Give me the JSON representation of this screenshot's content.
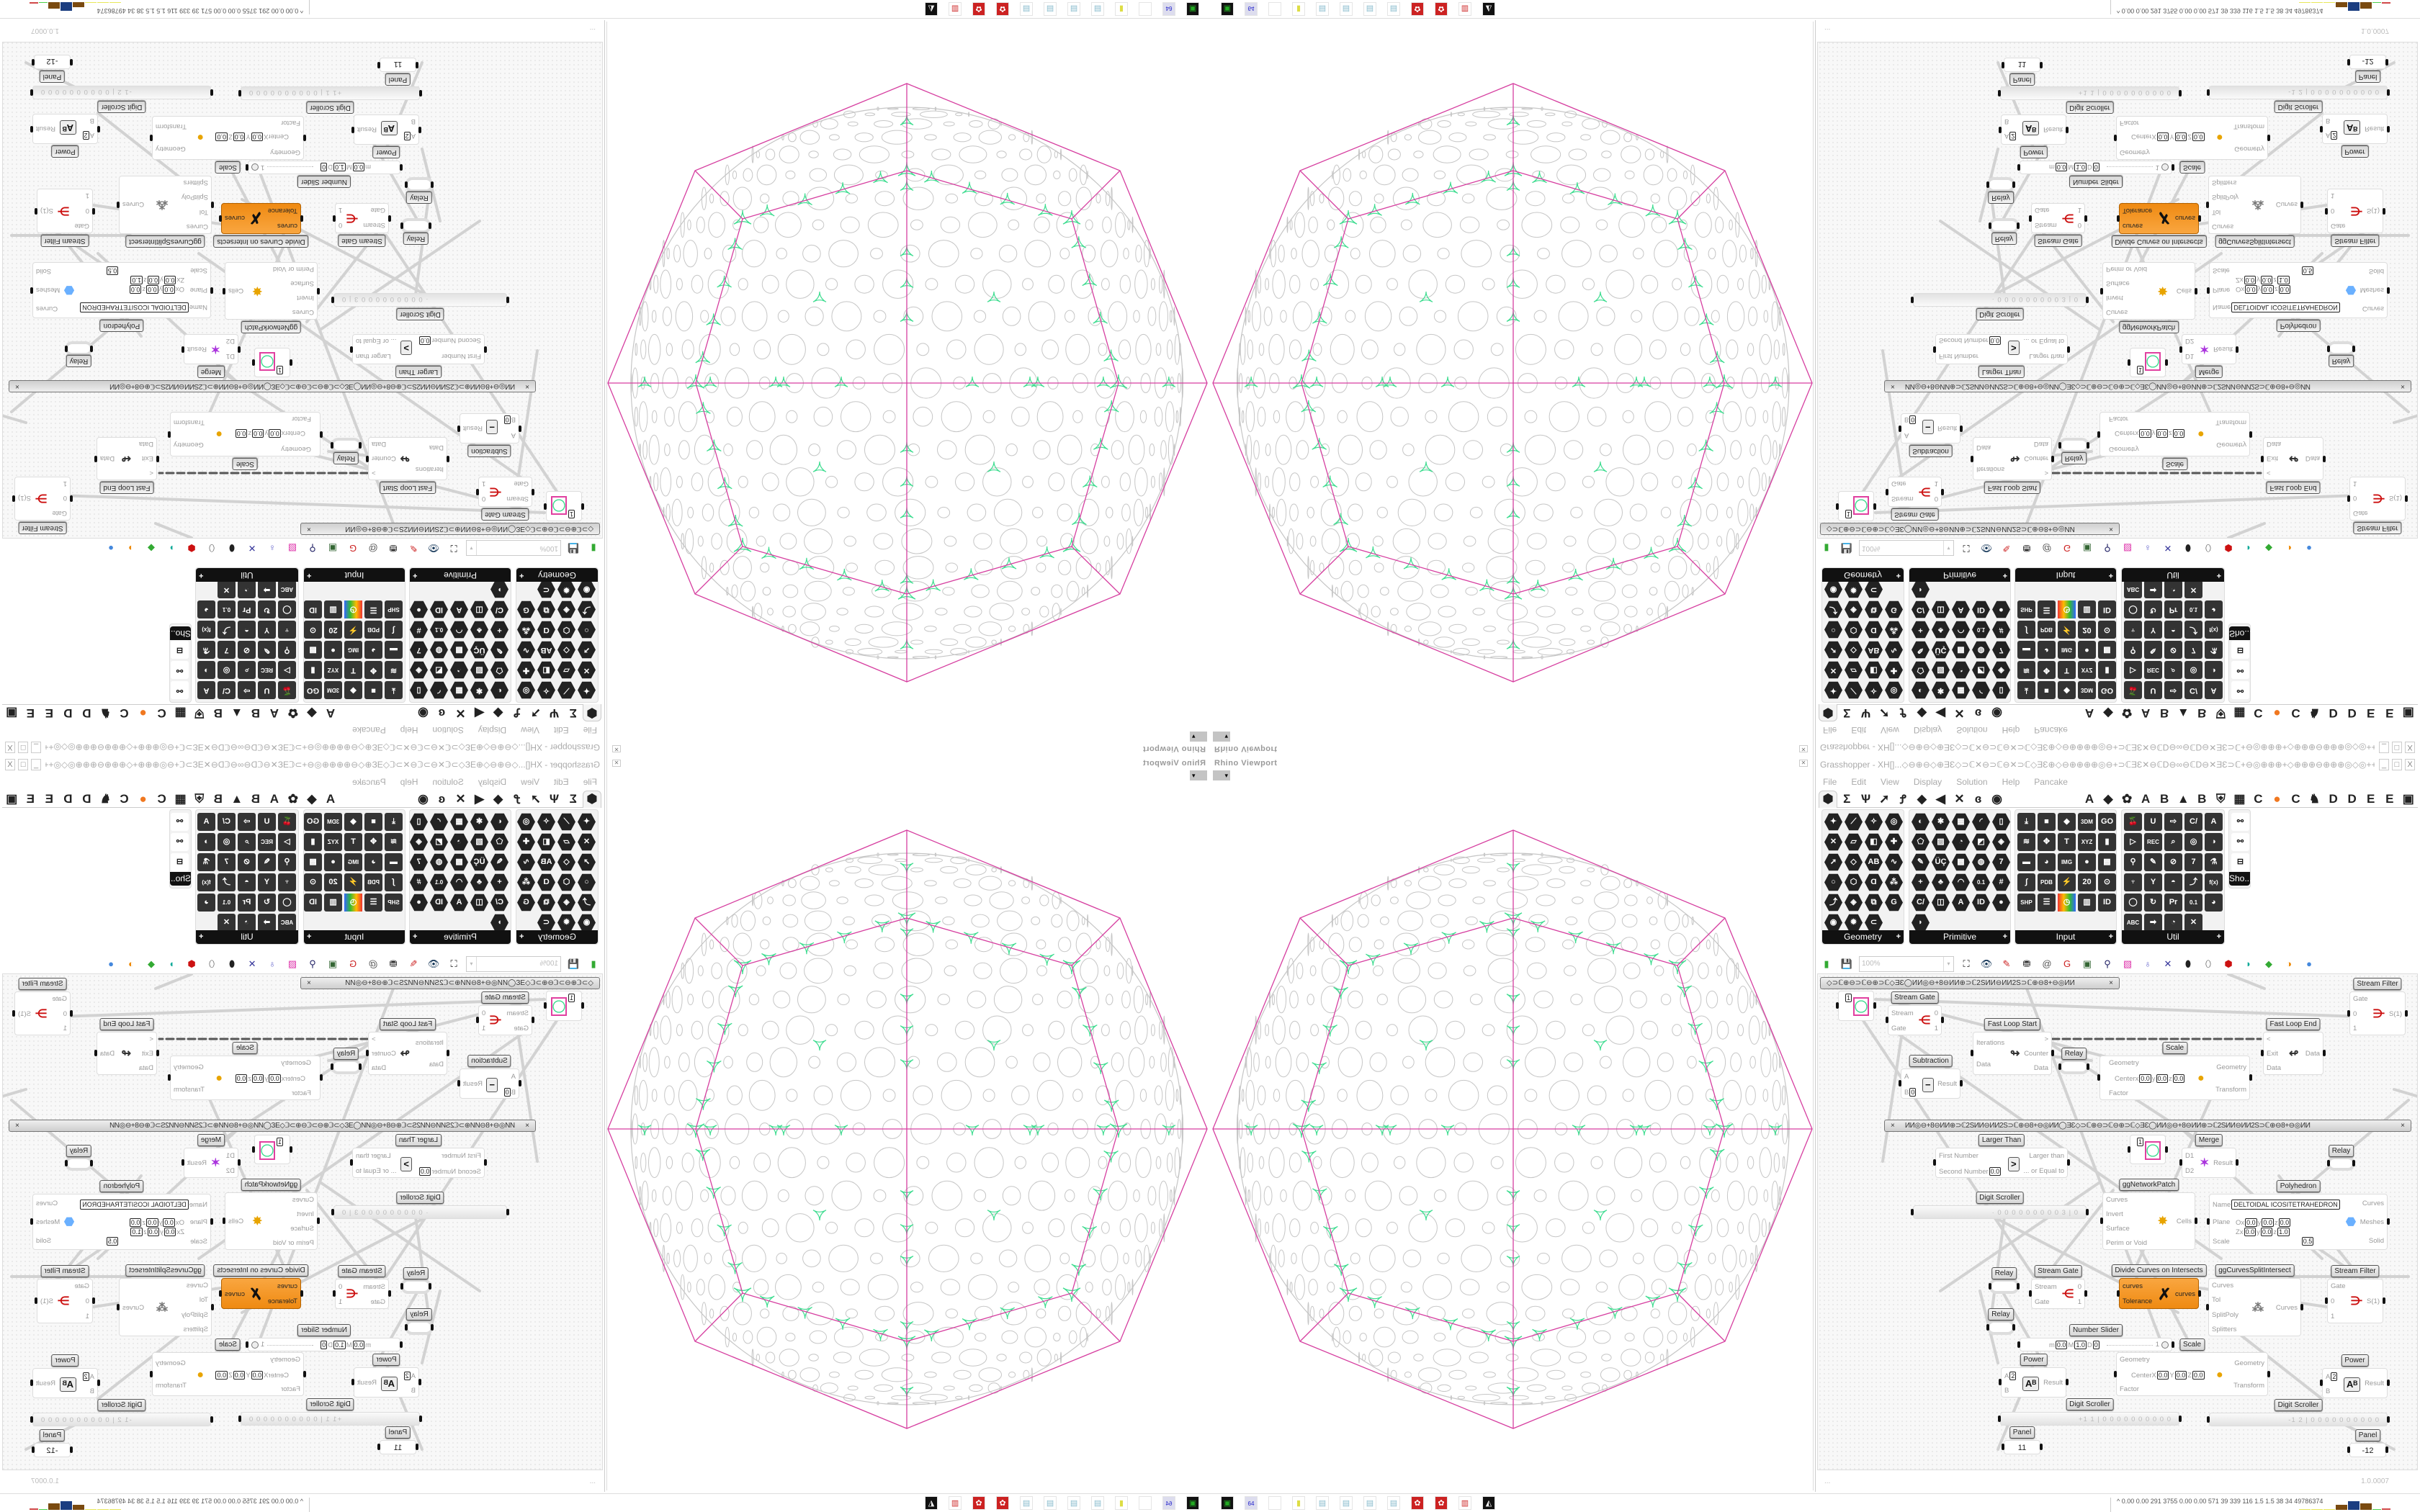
{
  "viewport": {
    "title": "Rhino Viewport",
    "close_icon": "close-icon",
    "colors": {
      "polyhedron_edges": "#d63fa0",
      "network": "#3ddc8f",
      "circles": "#c6c6c6"
    }
  },
  "gh": {
    "title": "Grasshopper - XH[]...◇⊖⊕⊖◇⊕ƎƐ◇⊃ℂ✕⊖⊃ℂ⊖✕⊃ℂ◇ƎƐ⊕◇⊖⊕⊕⊕⊕◎⊖+⊃ℂƎƐ✕⊖ℂD⊖∞⊖ℂD⊖✕ƎƐ⊃ℂ+⊖◎⊕⊕⊕+◇⊕⊕⊕⊖⊕⊕⊕◎◇◎+++◎◇◎⊕⊕⊖⊕⊕⊕⊕◇⊕⊕⊕◎⊖+⊃ℂƎƐ✕⊖ℂD⊖∞⊖ℂD...",
    "window_buttons": [
      "_",
      "□",
      "X"
    ],
    "menu": [
      "File",
      "Edit",
      "View",
      "Display",
      "Solution",
      "Help",
      "Pancake"
    ],
    "tabs": [
      "⬢",
      "Σ",
      "Ѱ",
      "➚",
      "Ꝭ",
      "◆",
      "◀",
      "✕",
      "ɞ",
      "◉",
      "",
      "A",
      "◆",
      "✿",
      "A",
      "B",
      "▲",
      "B",
      "⛨",
      "▦",
      "C",
      "●",
      "C",
      "♞",
      "D",
      "D",
      "E",
      "E",
      "▣"
    ],
    "active_tab": 0,
    "accent_color": "#ef8a12",
    "panels": [
      {
        "label": "Geometry",
        "icons": [
          "✦",
          "⟋",
          "✧",
          "◎",
          "✕",
          "▱",
          "◧",
          "✚",
          "➚",
          "◇",
          "AB",
          "∿",
          "○",
          "⬡",
          "Ɑ",
          "⁂",
          "⤴",
          "◈",
          "⧉",
          "G",
          "◉",
          "✹",
          "⊂"
        ]
      },
      {
        "label": "Primitive",
        "icons": [
          "◐",
          "✱",
          "▦",
          "◜",
          "▯",
          "⬠",
          "▨",
          "◔",
          "◩",
          "◈",
          "✎",
          "ÜÇ",
          "▩",
          "◍",
          "7",
          "+",
          "♣",
          "◠",
          "0.1",
          "#",
          "C/",
          "◫",
          "A",
          "ID",
          "●",
          "◗"
        ]
      },
      {
        "label": "Input",
        "icons": [
          "⤓",
          "■",
          "◆",
          "3DM",
          "GO",
          "≋",
          "✥",
          "T",
          "XYZ",
          "▮",
          "▬",
          "◕",
          "IMG",
          "●",
          "▩",
          "∫",
          "PDB",
          "⚡",
          "20",
          "⊙",
          "SHP",
          "☰",
          "◷",
          "▥",
          "ID"
        ]
      },
      {
        "label": "Util",
        "icons": [
          "🍒",
          "U",
          "⇨",
          "C/",
          "A",
          "▷",
          "REC",
          "⌕",
          "◎",
          "◑",
          "⚲",
          "✎",
          "⊘",
          "7",
          "⚗",
          "♆",
          "Y",
          "◓",
          "⤴",
          "f(x)",
          "◯",
          "↻",
          "Pr",
          "0.1",
          "◕",
          "ABC",
          "➡",
          "◔",
          "✕"
        ]
      },
      {
        "label": "Sho...",
        "icons": [
          "⚯",
          "⚯",
          "⊟"
        ]
      }
    ],
    "toolbar": {
      "zoom": "100%",
      "icons": [
        "new-file-icon",
        "save-icon",
        "zoom-extents-icon",
        "preview-eye-icon",
        "sketch-pen-icon",
        "bake-icon",
        "email-icon",
        "gha-icon",
        "canvas-icon",
        "search-icon",
        "package-icon",
        "bulb-icon",
        "wire-display-icon",
        "shaded-preview-icon",
        "wireframe-preview-icon",
        "preview-red-icon",
        "preview-teal-icon",
        "preview-green-icon",
        "preview-orange-icon",
        "preview-sphere-icon"
      ]
    },
    "group_bars": [
      "◇⊃ℂ⊕⊖⊃ℂ⊖⊕⊃ℂ◇ƎƐ◯ИИ◎⊖+8⊖ИИ⊕⊃ℂ2SИИ⊖ИИ2S⊃ℂ⊕⊖8+⊖◎ИИ",
      "ИИ◎⊖+8⊖ИИ⊕⊃ℂ2SИИ⊖ИИ2S⊃ℂ⊕⊖8+⊖◎ИИ◯ƎƐ◇⊃ℂ⊕⊖⊃ℂ⊖⊕⊃ℂ◇ƎƐ◯ИИ◎⊖+8⊖ИИ⊕⊃ℂ2SИИ⊖ИИ2S⊃ℂ⊕⊖8+⊖◎ИИ"
    ],
    "group_close": "×",
    "components": [
      {
        "id": "preview-1",
        "type": "preview",
        "value": "1"
      },
      {
        "id": "stream-gate-1",
        "label": "Stream Gate",
        "inputs": [
          "Stream",
          "Gate"
        ],
        "outputs": [
          "0",
          "1"
        ],
        "icon": "stream-gate-icon",
        "glyph": "⋲"
      },
      {
        "id": "fast-loop-start",
        "label": "Fast Loop Start",
        "inputs": [
          "Iterations",
          "Data"
        ],
        "outputs": [
          ">",
          "Counter",
          "Data"
        ],
        "icon": "loop-start-icon",
        "glyph": "↬"
      },
      {
        "id": "relay-1",
        "type": "relay",
        "label": "Relay"
      },
      {
        "id": "subtraction",
        "label": "Subtraction",
        "inputs": [
          "A",
          "B"
        ],
        "input_values": [
          null,
          "0"
        ],
        "outputs": [
          "Result"
        ],
        "icon": "minus-icon",
        "glyph": "−"
      },
      {
        "id": "scale-1",
        "label": "Scale",
        "inputs": [
          "Geometry",
          "Center",
          "Factor"
        ],
        "center": [
          "x",
          "0.0",
          "y",
          "0.0",
          "z",
          "0.0"
        ],
        "outputs": [
          "Geometry",
          "Transform"
        ],
        "icon": "scale-icon",
        "glyph": "●"
      },
      {
        "id": "fast-loop-end",
        "label": "Fast Loop End",
        "inputs": [
          "<",
          "Exit",
          "Data"
        ],
        "outputs": [
          "Data"
        ],
        "icon": "loop-end-icon",
        "glyph": "↫"
      },
      {
        "id": "stream-filter-1",
        "label": "Stream Filter",
        "inputs": [
          "Gate",
          "0",
          "1"
        ],
        "outputs": [
          "S(1)"
        ],
        "icon": "stream-filter-icon",
        "glyph": "⋺"
      },
      {
        "id": "larger-than",
        "label": "Larger Than",
        "inputs": [
          "First Number",
          "Second Number"
        ],
        "input_values": [
          null,
          "0.0"
        ],
        "outputs": [
          "Larger than",
          "... or Equal to"
        ],
        "icon": "greater-than-icon",
        "glyph": ">"
      },
      {
        "id": "preview-2",
        "type": "preview",
        "value": "1"
      },
      {
        "id": "merge",
        "label": "Merge",
        "inputs": [
          "D1",
          "D2"
        ],
        "outputs": [
          "Result"
        ],
        "icon": "merge-icon",
        "glyph": "✶"
      },
      {
        "id": "relay-2",
        "type": "relay",
        "label": "Relay"
      },
      {
        "id": "network-patch",
        "label": "ggNetworkPatch",
        "inputs": [
          "Curves",
          "Invert",
          "Surface",
          "Perim or Void"
        ],
        "outputs": [
          "Cells"
        ],
        "icon": "network-patch-icon",
        "glyph": "✸"
      },
      {
        "id": "polyhedron",
        "label": "Polyhedron",
        "inputs": [
          "Name",
          "Plane",
          "Scale"
        ],
        "name_value": "DELTOIDAL ICOSITETRAHEDRON",
        "plane_o": [
          "O",
          "x",
          "0.0",
          "y",
          "0.0",
          "z",
          "0.0"
        ],
        "plane_z": [
          "Z",
          "x",
          "0.0",
          "y",
          "0.0",
          "z",
          "1.0"
        ],
        "scale_value": "0.5",
        "outputs": [
          "Curves",
          "Meshes",
          "Solid"
        ],
        "icon": "polyhedron-icon",
        "glyph": "⬣"
      },
      {
        "id": "digit-scroller-1",
        "type": "scroller",
        "label": "Digit Scroller",
        "digits": "· 0 0 0 0 0 0 0 0 0 3 | 0"
      },
      {
        "id": "relay-3",
        "type": "relay",
        "label": "Relay"
      },
      {
        "id": "stream-gate-2",
        "label": "Stream Gate",
        "inputs": [
          "Stream",
          "Gate"
        ],
        "outputs": [
          "0",
          "1"
        ],
        "icon": "stream-gate-icon",
        "glyph": "⋲"
      },
      {
        "id": "divide-curves",
        "label": "Divide Curves on Intersects",
        "inputs": [
          "curves",
          "Tolerance"
        ],
        "outputs": [
          "curves"
        ],
        "icon": "divide-curves-icon",
        "glyph": "✗",
        "orange": true
      },
      {
        "id": "curves-split-intersect",
        "label": "ggCurvesSplitIntersect",
        "inputs": [
          "Curves",
          "Tol",
          "SplitPoly",
          "Splitters"
        ],
        "outputs": [
          "Curves"
        ],
        "icon": "split-icon",
        "glyph": "⁂"
      },
      {
        "id": "stream-filter-2",
        "label": "Stream Filter",
        "inputs": [
          "Gate",
          "0",
          "1"
        ],
        "outputs": [
          "S(1)"
        ],
        "icon": "stream-filter-icon",
        "glyph": "⋺"
      },
      {
        "id": "relay-4",
        "type": "relay",
        "label": "Relay"
      },
      {
        "id": "number-slider",
        "type": "slider",
        "label": "Number Slider",
        "min": "0.0",
        "max": "1.0",
        "decimals": "0",
        "value": 1.0,
        "value_text": "1"
      },
      {
        "id": "scale-2",
        "label": "Scale",
        "inputs": [
          "Geometry",
          "Center",
          "Factor"
        ],
        "center": [
          "X",
          "0.0",
          "Y",
          "0.0",
          "Z",
          "0.0"
        ],
        "outputs": [
          "Geometry",
          "Transform"
        ],
        "icon": "scale-icon",
        "glyph": "●"
      },
      {
        "id": "power-1",
        "label": "Power",
        "inputs": [
          "A",
          "B"
        ],
        "input_values": [
          "2",
          null
        ],
        "outputs": [
          "Result"
        ],
        "icon": "power-icon",
        "glyph": "Aᴮ"
      },
      {
        "id": "power-2",
        "label": "Power",
        "inputs": [
          "A",
          "B"
        ],
        "input_values": [
          "2",
          null
        ],
        "outputs": [
          "Result"
        ],
        "icon": "power-icon",
        "glyph": "Aᴮ"
      },
      {
        "id": "digit-scroller-2",
        "type": "scroller",
        "label": "Digit Scroller",
        "digits": "+1 1 | 0 0 0 0 0 0 0 0 0 0"
      },
      {
        "id": "digit-scroller-3",
        "type": "scroller",
        "label": "Digit Scroller",
        "digits": "-1 2 | 0 0 0 0 0 0 0 0 0 0"
      },
      {
        "id": "panel-1",
        "type": "panel",
        "label": "Panel",
        "value": "11"
      },
      {
        "id": "panel-2",
        "type": "panel",
        "label": "Panel",
        "value": "-12"
      }
    ],
    "status": {
      "left": "...",
      "version": "1.0.0007"
    }
  },
  "taskbar": {
    "icons": [
      "device-icon",
      "floppy-64-icon",
      "blank-icon",
      "folder-icon",
      "notepad-icon",
      "notepad-icon",
      "notepad-icon",
      "notepad-icon",
      "red-app-icon",
      "red-app-icon",
      "red-black-app-icon",
      "black-white-app-icon"
    ],
    "floppy_label": "64",
    "stats": "0.00 0.00 291 3755 0.00 0.00 571  39  339  116  1.5  1.5  38  34  49786374",
    "expand": "^",
    "meter_colors": [
      "#e8e85a",
      "#e8e85a",
      "#e8e85a",
      "#7a4a10",
      "#1b3d80",
      "#7a4a10",
      "#4ad04a",
      "#d04848"
    ]
  }
}
